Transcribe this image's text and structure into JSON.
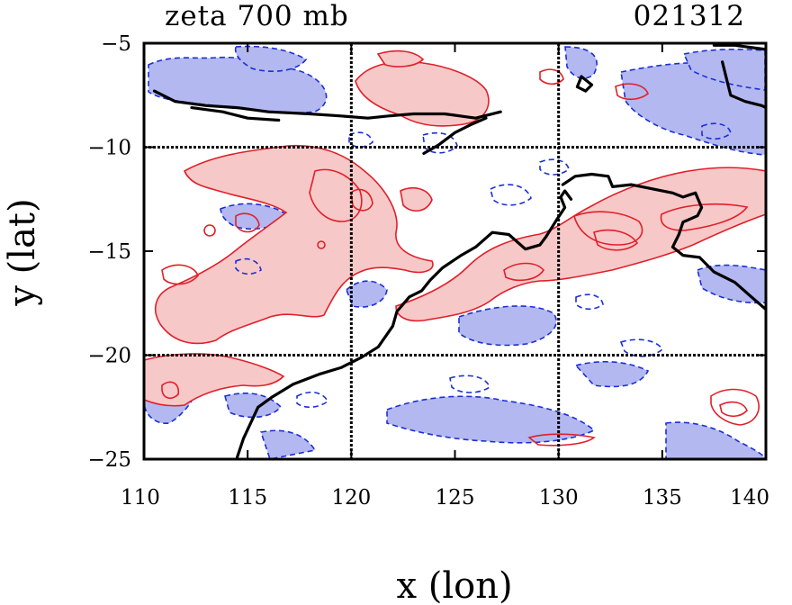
{
  "chart_data": {
    "type": "contour-map",
    "title": "zeta 700 mb",
    "subtitle": "021312",
    "xlabel": "x (lon)",
    "ylabel": "y (lat)",
    "xlim": [
      110,
      140
    ],
    "ylim": [
      -25,
      -5
    ],
    "xticks": [
      110,
      115,
      120,
      125,
      130,
      135,
      140
    ],
    "yticks": [
      -5,
      -10,
      -15,
      -20,
      -25
    ],
    "xtick_labels": [
      "110",
      "115",
      "120",
      "125",
      "130",
      "135",
      "140"
    ],
    "ytick_labels": [
      "−5",
      "−10",
      "−15",
      "−20",
      "−25"
    ],
    "grid_x": [
      120,
      130
    ],
    "grid_y": [
      -10,
      -20
    ],
    "grid": true,
    "colors": {
      "positive_line": "#e0202a",
      "positive_fill": "#f7c8c8",
      "negative_line": "#1a2fd6",
      "negative_fill": "#b3b8f0",
      "coastline": "#000000",
      "grid": "#000000"
    },
    "coastline": [
      [
        [
          110.5,
          -7.3
        ],
        [
          111.5,
          -7.8
        ],
        [
          113.0,
          -8.0
        ],
        [
          114.5,
          -8.1
        ],
        [
          116.0,
          -8.3
        ],
        [
          118.0,
          -8.4
        ],
        [
          119.5,
          -8.5
        ],
        [
          120.8,
          -8.6
        ],
        [
          121.8,
          -8.5
        ],
        [
          123.0,
          -8.4
        ],
        [
          124.5,
          -8.4
        ],
        [
          126.0,
          -8.6
        ],
        [
          127.2,
          -8.3
        ]
      ],
      [
        [
          123.5,
          -10.3
        ],
        [
          124.2,
          -9.9
        ],
        [
          125.0,
          -9.3
        ],
        [
          125.8,
          -8.9
        ],
        [
          126.5,
          -8.6
        ]
      ],
      [
        [
          130.2,
          -11.8
        ],
        [
          130.8,
          -11.4
        ],
        [
          131.6,
          -11.3
        ],
        [
          132.4,
          -11.4
        ],
        [
          132.6,
          -11.9
        ],
        [
          133.5,
          -11.8
        ],
        [
          134.5,
          -12.0
        ],
        [
          135.5,
          -12.2
        ],
        [
          136.0,
          -12.4
        ],
        [
          136.6,
          -12.2
        ],
        [
          136.9,
          -12.9
        ],
        [
          136.7,
          -13.3
        ],
        [
          136.0,
          -13.6
        ],
        [
          135.8,
          -14.2
        ],
        [
          135.5,
          -14.8
        ],
        [
          136.0,
          -15.2
        ],
        [
          136.8,
          -15.3
        ],
        [
          137.5,
          -16.0
        ],
        [
          138.5,
          -16.5
        ],
        [
          139.3,
          -17.2
        ],
        [
          140.0,
          -17.8
        ]
      ],
      [
        [
          140.0,
          -5.3
        ],
        [
          138.5,
          -5.1
        ],
        [
          137.5,
          -5.1
        ]
      ],
      [
        [
          137.9,
          -5.9
        ],
        [
          138.3,
          -7.5
        ],
        [
          139.0,
          -7.8
        ],
        [
          139.8,
          -8.0
        ],
        [
          140.0,
          -8.1
        ]
      ],
      [
        [
          112.3,
          -8.1
        ],
        [
          113.8,
          -8.3
        ],
        [
          115.0,
          -8.6
        ],
        [
          116.5,
          -8.7
        ]
      ],
      [
        [
          114.5,
          -24.9
        ],
        [
          114.8,
          -24.0
        ],
        [
          115.5,
          -22.5
        ],
        [
          116.2,
          -22.0
        ],
        [
          117.2,
          -21.4
        ],
        [
          118.5,
          -20.9
        ],
        [
          119.5,
          -20.6
        ],
        [
          120.5,
          -20.1
        ],
        [
          121.3,
          -19.6
        ],
        [
          122.0,
          -18.6
        ],
        [
          122.2,
          -17.9
        ],
        [
          122.8,
          -17.2
        ],
        [
          123.4,
          -16.9
        ],
        [
          123.8,
          -16.4
        ],
        [
          124.4,
          -15.8
        ],
        [
          125.3,
          -15.2
        ],
        [
          126.0,
          -14.8
        ],
        [
          126.8,
          -14.1
        ],
        [
          127.6,
          -14.2
        ],
        [
          128.4,
          -14.9
        ],
        [
          129.1,
          -14.7
        ],
        [
          129.4,
          -14.3
        ],
        [
          129.9,
          -13.5
        ],
        [
          130.3,
          -12.9
        ],
        [
          130.1,
          -12.4
        ],
        [
          130.3,
          -12.1
        ],
        [
          130.6,
          -12.5
        ]
      ],
      [
        [
          131.3,
          -7.3
        ],
        [
          131.6,
          -7.0
        ],
        [
          131.1,
          -6.6
        ],
        [
          130.9,
          -7.1
        ],
        [
          131.3,
          -7.3
        ]
      ]
    ]
  }
}
